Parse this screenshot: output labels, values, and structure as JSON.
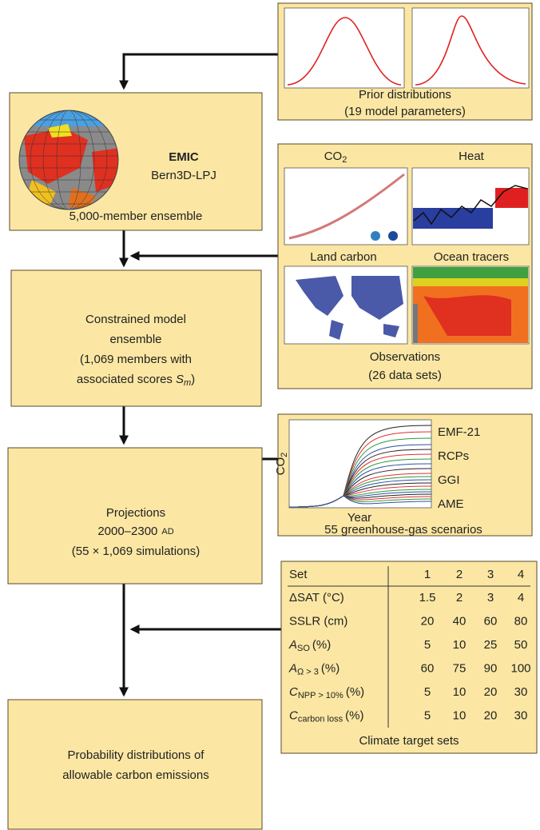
{
  "prior": {
    "title": "Prior distributions",
    "subtitle": "(19 model parameters)"
  },
  "emic": {
    "name": "EMIC",
    "model": "Bern3D-LPJ",
    "ensemble": "5,000-member ensemble"
  },
  "observations": {
    "co2": "CO",
    "co2_sub": "2",
    "heat": "Heat",
    "land": "Land carbon",
    "ocean": "Ocean tracers",
    "title": "Observations",
    "subtitle": "(26 data sets)"
  },
  "constrained": {
    "lines": [
      "Constrained model",
      "ensemble",
      "(1,069 members with",
      "associated scores"
    ],
    "score": "S",
    "score_sub": "m",
    "close": ")"
  },
  "scenarios": {
    "y_label": "CO",
    "y_label_sub": "2",
    "x_label": "Year",
    "legend": [
      {
        "name": "EMF-21",
        "color": "#222222"
      },
      {
        "name": "RCPs",
        "color": "#e03030"
      },
      {
        "name": "GGI",
        "color": "#2a9a3a"
      },
      {
        "name": "AME",
        "color": "#3050a0"
      }
    ],
    "caption": "55 greenhouse-gas scenarios"
  },
  "projections": {
    "title": "Projections",
    "period": "2000–2300",
    "era": "AD",
    "runs": "(55 × 1,069 simulations)"
  },
  "targets": {
    "header": [
      "Set",
      1,
      2,
      3,
      4
    ],
    "rows": [
      {
        "name": "ΔSAT (°C)",
        "values": [
          1.5,
          2,
          3,
          4
        ]
      },
      {
        "name": "SSLR (cm)",
        "values": [
          20,
          40,
          60,
          80
        ]
      },
      {
        "name": "A",
        "sub": "SO",
        "unit": "(%)",
        "values": [
          5,
          10,
          25,
          50
        ]
      },
      {
        "name": "A",
        "sub": "Ω > 3",
        "unit": "(%)",
        "values": [
          60,
          75,
          90,
          100
        ]
      },
      {
        "name": "C",
        "sub": "NPP > 10%",
        "unit": "(%)",
        "values": [
          5,
          10,
          20,
          30
        ]
      },
      {
        "name": "C",
        "sub": "carbon loss",
        "unit": "(%)",
        "values": [
          5,
          10,
          20,
          30
        ]
      }
    ],
    "caption": "Climate target sets"
  },
  "outcome": {
    "lines": [
      "Probability distributions of",
      "allowable carbon emissions"
    ]
  }
}
